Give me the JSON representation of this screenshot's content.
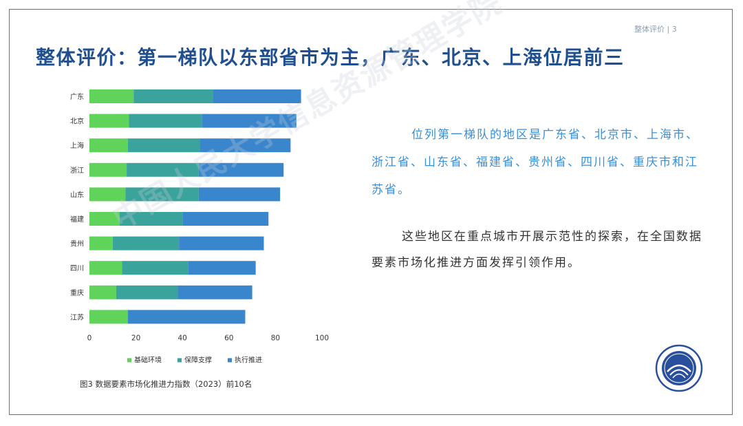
{
  "header": {
    "page_indicator": "整体评价 | 3"
  },
  "slide": {
    "title": "整体评价：第一梯队以东部省市为主，广东、北京、上海位居前三",
    "paragraph1": "位列第一梯队的地区是广东省、北京市、上海市、浙江省、山东省、福建省、贵州省、四川省、重庆市和江苏省。",
    "paragraph2": "这些地区在重点城市开展示范性的探索，在全国数据要素市场化推进方面发挥引领作用。",
    "caption": "图3  数据要素市场化推进力指数（2023）前10名",
    "watermark": "中国人民大学信息资源管理学院"
  },
  "chart_data": {
    "type": "bar",
    "orientation": "horizontal",
    "stacked": true,
    "categories": [
      "广东",
      "北京",
      "上海",
      "浙江",
      "山东",
      "福建",
      "贵州",
      "四川",
      "重庆",
      "江苏"
    ],
    "series": [
      {
        "name": "基础环境",
        "color": "#5fd35a",
        "values": [
          19,
          17,
          16.5,
          16,
          15.5,
          13,
          10,
          14,
          11.5,
          16.5
        ]
      },
      {
        "name": "保障支撑",
        "color": "#3aa39b",
        "values": [
          34,
          31.5,
          31,
          31,
          31.5,
          27,
          28.5,
          28.5,
          26.5,
          0
        ]
      },
      {
        "name": "执行推进",
        "color": "#3a86cc",
        "values": [
          38,
          40.5,
          39,
          36.5,
          35,
          37,
          36.5,
          29,
          32,
          50.5
        ]
      }
    ],
    "xlim": [
      0,
      100
    ],
    "xticks": [
      0,
      20,
      40,
      60,
      80,
      100
    ],
    "legend_position": "bottom",
    "grid": false
  }
}
